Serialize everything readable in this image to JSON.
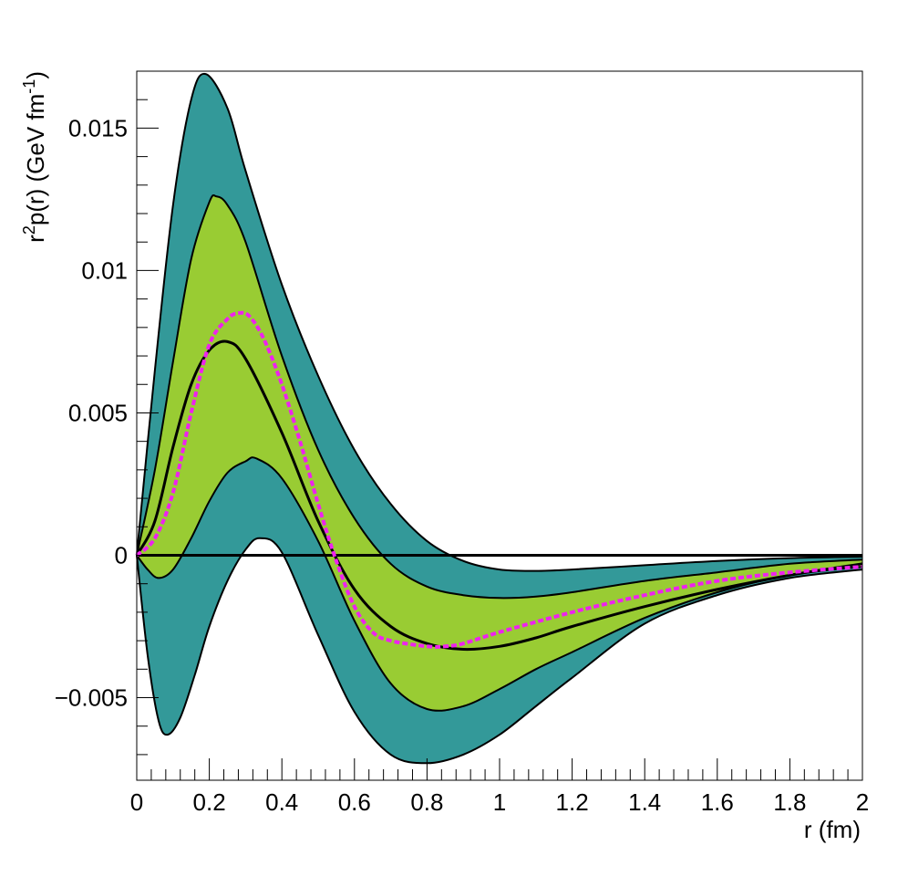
{
  "chart_data": {
    "type": "area",
    "title": "",
    "xlabel": "r (fm)",
    "ylabel": {
      "prefix": "r",
      "sup1": "2",
      "middle": "p(r) (GeV fm",
      "sup2": "-1",
      "suffix": ")"
    },
    "xlim": [
      0,
      2
    ],
    "ylim": [
      -0.0079,
      0.017
    ],
    "grid": false,
    "legend": "none",
    "x_ticks": [
      {
        "value": 0,
        "label": "0"
      },
      {
        "value": 0.2,
        "label": "0.2"
      },
      {
        "value": 0.4,
        "label": "0.4"
      },
      {
        "value": 0.6,
        "label": "0.6"
      },
      {
        "value": 0.8,
        "label": "0.8"
      },
      {
        "value": 1.0,
        "label": "1"
      },
      {
        "value": 1.2,
        "label": "1.2"
      },
      {
        "value": 1.4,
        "label": "1.4"
      },
      {
        "value": 1.6,
        "label": "1.6"
      },
      {
        "value": 1.8,
        "label": "1.8"
      },
      {
        "value": 2.0,
        "label": "2"
      }
    ],
    "y_ticks": [
      {
        "value": -0.005,
        "label": "−0.005"
      },
      {
        "value": 0,
        "label": "0"
      },
      {
        "value": 0.005,
        "label": "0.005"
      },
      {
        "value": 0.01,
        "label": "0.01"
      },
      {
        "value": 0.015,
        "label": "0.015"
      }
    ],
    "colors": {
      "outer_band": "#339999",
      "inner_band": "#99cc33",
      "band_edge": "#000000",
      "central": "#000000",
      "dashed": "#ee22ee",
      "zero_line": "#000000"
    },
    "series": [
      {
        "role": "outer-upper",
        "x": [
          0,
          0.05,
          0.1,
          0.15,
          0.19,
          0.25,
          0.3,
          0.4,
          0.5,
          0.6,
          0.7,
          0.8,
          0.9,
          1.0,
          1.1,
          1.2,
          1.4,
          1.6,
          1.8,
          2.0
        ],
        "y": [
          0,
          0.0065,
          0.0123,
          0.016,
          0.0169,
          0.0157,
          0.0135,
          0.0095,
          0.0063,
          0.0037,
          0.0018,
          0.0005,
          -0.0002,
          -0.0005,
          -0.00055,
          -0.0005,
          -0.00035,
          -0.0002,
          -0.0001,
          -5e-05
        ]
      },
      {
        "role": "inner-upper",
        "x": [
          0,
          0.05,
          0.1,
          0.15,
          0.2,
          0.22,
          0.25,
          0.3,
          0.4,
          0.5,
          0.6,
          0.7,
          0.8,
          0.9,
          1.0,
          1.1,
          1.2,
          1.4,
          1.6,
          1.8,
          2.0
        ],
        "y": [
          0,
          0.003,
          0.0068,
          0.0104,
          0.0124,
          0.0126,
          0.0123,
          0.011,
          0.007,
          0.0037,
          0.0013,
          -0.0003,
          -0.0011,
          -0.0014,
          -0.0015,
          -0.00145,
          -0.0013,
          -0.0009,
          -0.0006,
          -0.0003,
          -0.00015
        ]
      },
      {
        "role": "central",
        "x": [
          0,
          0.05,
          0.1,
          0.15,
          0.2,
          0.25,
          0.3,
          0.4,
          0.5,
          0.6,
          0.7,
          0.8,
          0.9,
          1.0,
          1.1,
          1.2,
          1.4,
          1.6,
          1.8,
          2.0
        ],
        "y": [
          0,
          0.0012,
          0.0038,
          0.006,
          0.0072,
          0.0075,
          0.0069,
          0.0043,
          0.0012,
          -0.0012,
          -0.0025,
          -0.0031,
          -0.0033,
          -0.0032,
          -0.0029,
          -0.0025,
          -0.0018,
          -0.0012,
          -0.0007,
          -0.0003
        ]
      },
      {
        "role": "inner-lower",
        "x": [
          0,
          0.03,
          0.06,
          0.1,
          0.15,
          0.2,
          0.25,
          0.3,
          0.33,
          0.4,
          0.5,
          0.6,
          0.7,
          0.8,
          0.9,
          1.0,
          1.1,
          1.2,
          1.4,
          1.6,
          1.8,
          2.0
        ],
        "y": [
          0,
          -0.0005,
          -0.0008,
          -0.0005,
          0.0006,
          0.0019,
          0.0029,
          0.0033,
          0.0034,
          0.0027,
          0.0005,
          -0.0023,
          -0.0045,
          -0.0054,
          -0.0053,
          -0.0047,
          -0.004,
          -0.0034,
          -0.0022,
          -0.0013,
          -0.0007,
          -0.0004
        ]
      },
      {
        "role": "outer-lower",
        "x": [
          0,
          0.03,
          0.06,
          0.085,
          0.12,
          0.16,
          0.2,
          0.25,
          0.3,
          0.34,
          0.4,
          0.5,
          0.6,
          0.7,
          0.8,
          0.9,
          1.0,
          1.1,
          1.2,
          1.4,
          1.6,
          1.8,
          2.0
        ],
        "y": [
          0,
          -0.0035,
          -0.0058,
          -0.0063,
          -0.0057,
          -0.0042,
          -0.0025,
          -0.0009,
          0.0002,
          0.0006,
          0.0001,
          -0.0028,
          -0.0055,
          -0.007,
          -0.0073,
          -0.007,
          -0.0063,
          -0.0053,
          -0.0043,
          -0.0024,
          -0.0014,
          -0.0008,
          -0.0005
        ]
      },
      {
        "role": "dashed",
        "x": [
          0,
          0.05,
          0.1,
          0.15,
          0.2,
          0.25,
          0.28,
          0.31,
          0.35,
          0.4,
          0.45,
          0.5,
          0.55,
          0.6,
          0.65,
          0.7,
          0.8,
          0.85,
          0.9,
          1.0,
          1.2,
          1.4,
          1.6,
          1.8,
          2.0
        ],
        "y": [
          0,
          0.0006,
          0.0022,
          0.005,
          0.0074,
          0.0083,
          0.0085,
          0.0084,
          0.0076,
          0.006,
          0.004,
          0.0018,
          -0.0002,
          -0.0018,
          -0.0027,
          -0.003,
          -0.0032,
          -0.0032,
          -0.0031,
          -0.0027,
          -0.002,
          -0.0014,
          -0.0009,
          -0.0006,
          -0.0004
        ]
      }
    ]
  }
}
